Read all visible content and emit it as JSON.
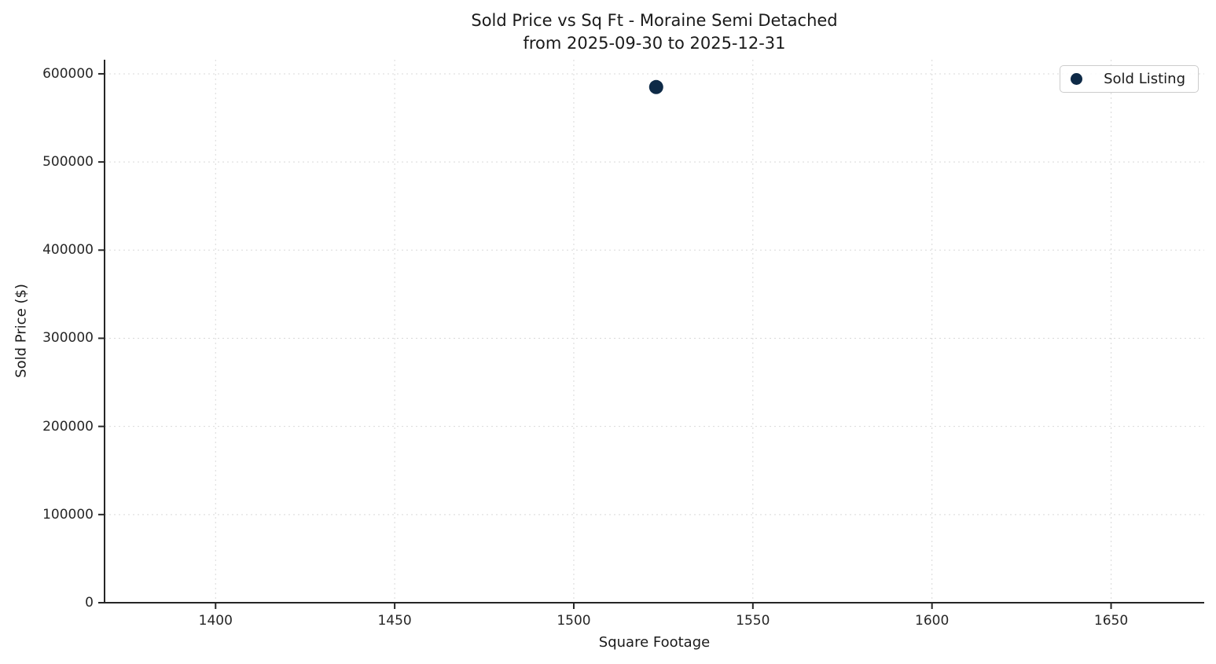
{
  "chart_data": {
    "type": "scatter",
    "title": "Sold Price vs Sq Ft - Moraine Semi Detached",
    "subtitle": "from 2025-09-30 to 2025-12-31",
    "xlabel": "Square Footage",
    "ylabel": "Sold Price ($)",
    "xlim": [
      1369,
      1676
    ],
    "ylim": [
      0,
      616000
    ],
    "xticks": [
      1400,
      1450,
      1500,
      1550,
      1600,
      1650
    ],
    "yticks": [
      0,
      100000,
      200000,
      300000,
      400000,
      500000,
      600000
    ],
    "grid": true,
    "grid_style": "dashed",
    "legend_position": "upper right",
    "series": [
      {
        "name": "Sold Listing",
        "marker": "circle",
        "color": "#0e2a47",
        "points": [
          {
            "x": 1523,
            "y": 585000
          }
        ]
      }
    ],
    "colors": {
      "marker": "#0e2a47",
      "grid": "#d9d9d9",
      "axis": "#262626",
      "text": "#1a1a1a",
      "background": "#ffffff",
      "legend_border": "#cccccc"
    }
  }
}
